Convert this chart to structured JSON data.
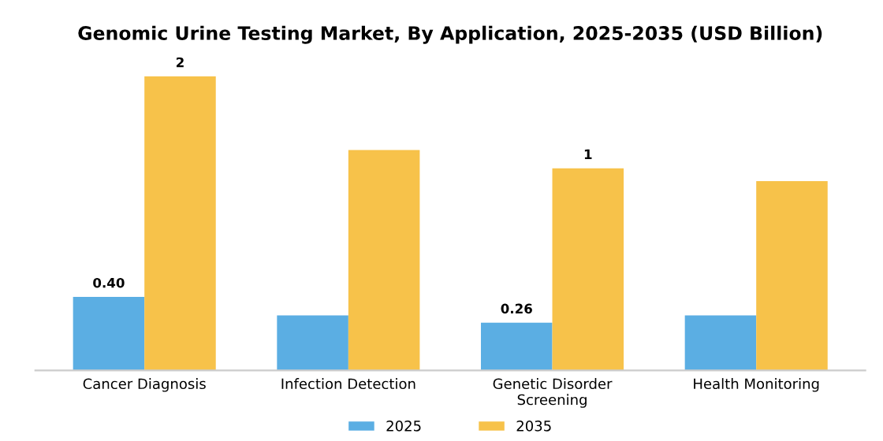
{
  "chart_data": {
    "type": "bar",
    "title": "Genomic Urine Testing Market, By Application, 2025-2035 (USD Billion)",
    "categories": [
      "Cancer Diagnosis",
      "Infection Detection",
      "Genetic Disorder\nScreening",
      "Health Monitoring"
    ],
    "series": [
      {
        "name": "2025",
        "color": "#5baee3",
        "values": [
          0.4,
          0.3,
          0.26,
          0.3
        ],
        "value_labels": [
          "0.40",
          null,
          "0.26",
          null
        ]
      },
      {
        "name": "2035",
        "color": "#f7c24a",
        "values": [
          1.6,
          1.2,
          1.1,
          1.03
        ],
        "value_labels": [
          "2",
          null,
          "1",
          null
        ]
      }
    ],
    "legend": "bottom",
    "grid": false
  }
}
